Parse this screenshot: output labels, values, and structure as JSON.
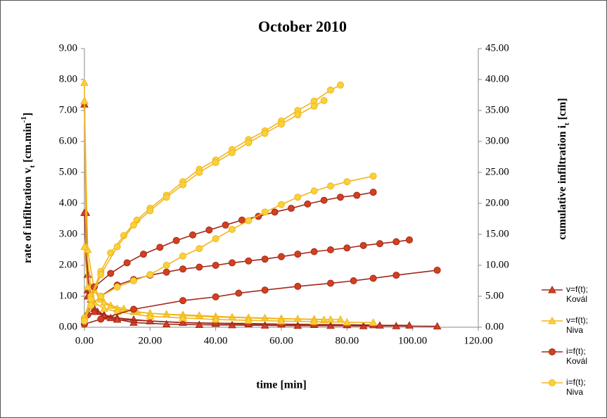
{
  "chart_data": {
    "type": "line",
    "title": "October 2010",
    "x_label": "time [min]",
    "y_label": [
      "rate of infiltration  v",
      "t",
      " [cm.min",
      "-1",
      "]"
    ],
    "y2_label": [
      "cumulative infiltration  i",
      "t",
      " [cm]"
    ],
    "xlim": [
      0,
      120
    ],
    "xticks": [
      {
        "value": 0,
        "label": "0.00"
      },
      {
        "value": 20,
        "label": "20.00"
      },
      {
        "value": 40,
        "label": "40.00"
      },
      {
        "value": 60,
        "label": "60.00"
      },
      {
        "value": 80,
        "label": "80.00"
      },
      {
        "value": 100,
        "label": "100.00"
      },
      {
        "value": 120,
        "label": "120.00"
      }
    ],
    "ylim": [
      0,
      9
    ],
    "yticks": [
      {
        "value": 0,
        "label": "0.00"
      },
      {
        "value": 1,
        "label": "1.00"
      },
      {
        "value": 2,
        "label": "2.00"
      },
      {
        "value": 3,
        "label": "3.00"
      },
      {
        "value": 4,
        "label": "4.00"
      },
      {
        "value": 5,
        "label": "5.00"
      },
      {
        "value": 6,
        "label": "6.00"
      },
      {
        "value": 7,
        "label": "7.00"
      },
      {
        "value": 8,
        "label": "8.00"
      },
      {
        "value": 9,
        "label": "9.00"
      }
    ],
    "y2lim": [
      0,
      45
    ],
    "y2ticks": [
      {
        "value": 0,
        "label": "0.00"
      },
      {
        "value": 5,
        "label": "5.00"
      },
      {
        "value": 10,
        "label": "10.00"
      },
      {
        "value": 15,
        "label": "15.00"
      },
      {
        "value": 20,
        "label": "20.00"
      },
      {
        "value": 25,
        "label": "25.00"
      },
      {
        "value": 30,
        "label": "30.00"
      },
      {
        "value": 35,
        "label": "35.00"
      },
      {
        "value": 40,
        "label": "40.00"
      },
      {
        "value": 45,
        "label": "45.00"
      }
    ],
    "grid": false,
    "legend": "right",
    "series": [
      {
        "name": "v=f(t); Kovál",
        "color": "#a3281a",
        "marker": "triangle",
        "axis": "y",
        "x": [
          0,
          0.5,
          1,
          2,
          4,
          8,
          15,
          25,
          35,
          45,
          55,
          65,
          75,
          85,
          95,
          107.5
        ],
        "values": [
          7.2,
          3.7,
          1.7,
          0.9,
          0.5,
          0.3,
          0.15,
          0.1,
          0.08,
          0.07,
          0.06,
          0.05,
          0.05,
          0.04,
          0.04,
          0.03
        ]
      },
      {
        "name": "v=f(t); Kovál",
        "color": "#a3281a",
        "marker": "triangle",
        "axis": "y",
        "x": [
          0,
          1,
          3,
          6,
          10,
          15,
          20,
          30,
          40,
          50,
          60,
          70,
          80,
          90,
          99
        ],
        "values": [
          7.3,
          1.2,
          0.6,
          0.4,
          0.3,
          0.25,
          0.2,
          0.15,
          0.12,
          0.1,
          0.09,
          0.08,
          0.07,
          0.06,
          0.06
        ]
      },
      {
        "name": "v=f(t); Kovál",
        "color": "#a3281a",
        "marker": "triangle",
        "axis": "y",
        "x": [
          0,
          1,
          3,
          6,
          10,
          20,
          30,
          40,
          50,
          60,
          70,
          80,
          88
        ],
        "values": [
          3.7,
          1.0,
          0.5,
          0.35,
          0.25,
          0.2,
          0.15,
          0.13,
          0.12,
          0.1,
          0.09,
          0.08,
          0.07
        ]
      },
      {
        "name": "v=f(t); Niva",
        "color": "#f2b51c",
        "marker": "triangle",
        "axis": "y",
        "x": [
          0,
          0.5,
          2,
          5,
          8,
          12,
          16,
          20,
          25,
          30,
          35,
          40,
          45,
          50,
          55,
          60,
          65,
          70,
          75,
          78
        ],
        "values": [
          7.9,
          2.6,
          1.3,
          0.9,
          0.7,
          0.6,
          0.5,
          0.45,
          0.42,
          0.4,
          0.38,
          0.35,
          0.33,
          0.31,
          0.3,
          0.28,
          0.27,
          0.26,
          0.25,
          0.25
        ]
      },
      {
        "name": "v=f(t); Niva",
        "color": "#f2b51c",
        "marker": "triangle",
        "axis": "y",
        "x": [
          0,
          1,
          3,
          6,
          10,
          15,
          20,
          30,
          40,
          50,
          60,
          70,
          73
        ],
        "values": [
          7.3,
          2.5,
          1.2,
          0.8,
          0.6,
          0.5,
          0.45,
          0.38,
          0.33,
          0.3,
          0.27,
          0.25,
          0.24
        ]
      },
      {
        "name": "v=f(t); Niva",
        "color": "#f2b51c",
        "marker": "triangle",
        "axis": "y",
        "x": [
          0,
          1,
          3,
          6,
          10,
          20,
          30,
          40,
          50,
          60,
          70,
          80,
          88
        ],
        "values": [
          2.6,
          1.3,
          0.8,
          0.6,
          0.5,
          0.35,
          0.3,
          0.25,
          0.22,
          0.2,
          0.18,
          0.16,
          0.15
        ]
      },
      {
        "name": "i=f(t); Kovál",
        "color": "#a3281a",
        "marker": "circle",
        "axis": "y2",
        "x": [
          1,
          3,
          8,
          13,
          18,
          23,
          28,
          33,
          38,
          43,
          48,
          53,
          58,
          63,
          68,
          73,
          78,
          83,
          88
        ],
        "values": [
          2,
          6.5,
          8.7,
          10.4,
          11.8,
          12.9,
          14,
          14.9,
          15.7,
          16.5,
          17.3,
          17.9,
          18.6,
          19.2,
          19.9,
          20.5,
          21,
          21.3,
          21.8
        ]
      },
      {
        "name": "i=f(t); Kovál",
        "color": "#a3281a",
        "marker": "circle",
        "axis": "y2",
        "x": [
          0,
          2,
          5,
          10,
          15,
          20,
          25,
          30,
          35,
          40,
          45,
          50,
          55,
          60,
          65,
          70,
          75,
          80,
          85,
          90,
          95,
          99
        ],
        "values": [
          0.5,
          3.5,
          5,
          6.8,
          7.7,
          8.4,
          8.9,
          9.4,
          9.7,
          10,
          10.4,
          10.7,
          11,
          11.4,
          11.8,
          12.2,
          12.5,
          12.8,
          13.2,
          13.5,
          13.8,
          14.1
        ]
      },
      {
        "name": "i=f(t); Kovál",
        "color": "#a3281a",
        "marker": "circle",
        "axis": "y2",
        "x": [
          0,
          5,
          15,
          30,
          40,
          47,
          55,
          65,
          75,
          82,
          88,
          95,
          107.5
        ],
        "values": [
          0.5,
          1.3,
          2.9,
          4.3,
          4.9,
          5.5,
          6,
          6.6,
          7.1,
          7.5,
          7.9,
          8.4,
          9.2
        ]
      },
      {
        "name": "i=f(t); Niva",
        "color": "#f2b51c",
        "marker": "circle",
        "axis": "y2",
        "x": [
          0,
          2,
          5,
          8,
          12,
          16,
          20,
          25,
          30,
          35,
          40,
          45,
          50,
          55,
          60,
          65,
          70,
          75,
          78
        ],
        "values": [
          1.5,
          5,
          9,
          12,
          14.8,
          17.3,
          19.2,
          21.3,
          23.5,
          25.5,
          27,
          28.7,
          30.3,
          31.7,
          33.3,
          35,
          36.5,
          38.3,
          39.1
        ]
      },
      {
        "name": "i=f(t); Niva",
        "color": "#f2b51c",
        "marker": "circle",
        "axis": "y2",
        "x": [
          0,
          2,
          5,
          10,
          15,
          20,
          25,
          30,
          35,
          40,
          45,
          50,
          55,
          60,
          65,
          70,
          73
        ],
        "values": [
          1.2,
          4.5,
          8.5,
          13,
          16.5,
          18.8,
          21,
          23,
          25,
          26.6,
          28.2,
          29.8,
          31.3,
          32.8,
          34.3,
          35.7,
          36.6
        ]
      },
      {
        "name": "i=f(t); Niva",
        "color": "#f2b51c",
        "marker": "circle",
        "axis": "y2",
        "x": [
          0,
          2,
          5,
          10,
          15,
          20,
          25,
          30,
          35,
          40,
          45,
          50,
          55,
          60,
          65,
          70,
          75,
          80,
          88
        ],
        "values": [
          1,
          3.5,
          5,
          6.5,
          7.5,
          8.5,
          10,
          11.5,
          12.7,
          14.3,
          15.8,
          17.2,
          18.6,
          19.8,
          21,
          22,
          22.8,
          23.5,
          24.4
        ]
      }
    ]
  }
}
